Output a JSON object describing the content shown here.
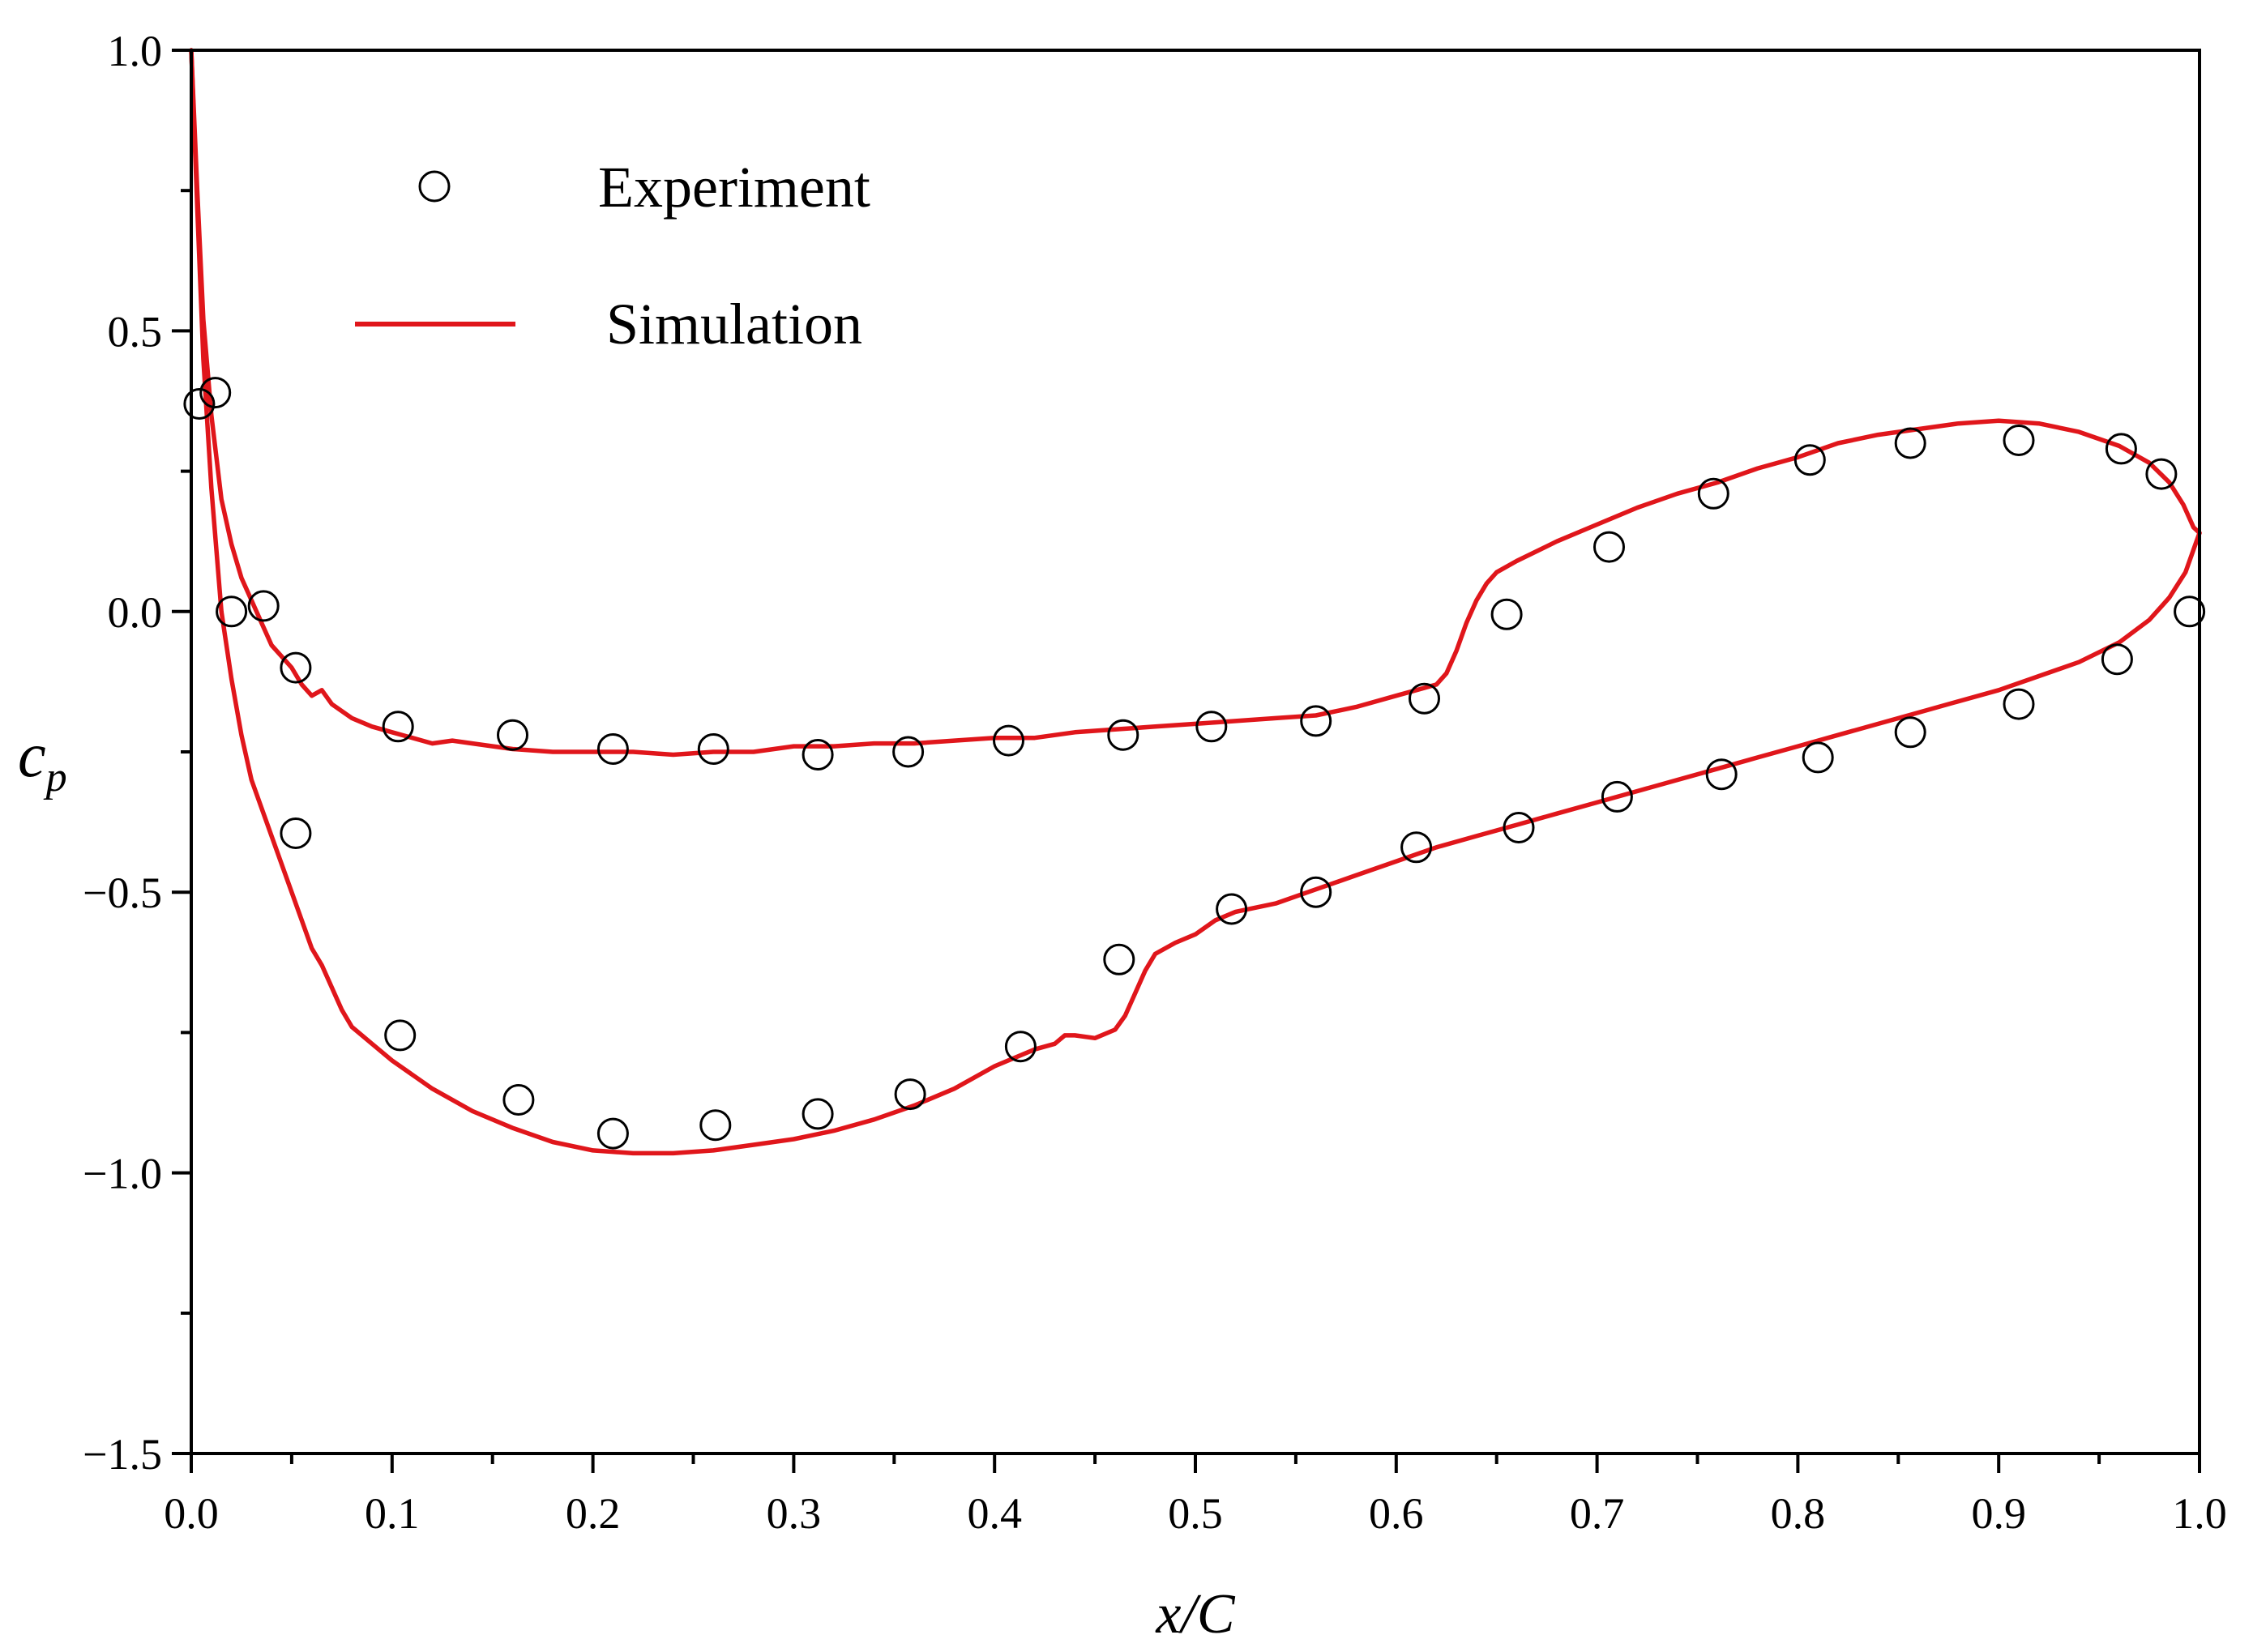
{
  "chart_data": {
    "type": "line",
    "title": "",
    "xlabel": "x/C",
    "ylabel": "c_p",
    "xlim": [
      0.0,
      1.0
    ],
    "ylim": [
      -1.5,
      1.0
    ],
    "xticks": [
      "0.0",
      "0.1",
      "0.2",
      "0.3",
      "0.4",
      "0.5",
      "0.6",
      "0.7",
      "0.8",
      "0.9",
      "1.0"
    ],
    "yticks": [
      "1.0",
      "0.5",
      "0.0",
      "−0.5",
      "−1.0",
      "−1.5"
    ],
    "legend_position": "top-left",
    "colors": {
      "simulation": "#e0161b",
      "experiment": "#000000",
      "axes": "#000000"
    },
    "series": [
      {
        "name": "Experiment",
        "kind": "scatter",
        "marker": "open-circle",
        "points": [
          [
            0.004,
            0.37
          ],
          [
            0.012,
            0.39
          ],
          [
            0.02,
            0.0
          ],
          [
            0.036,
            0.01
          ],
          [
            0.052,
            -0.1
          ],
          [
            0.052,
            -0.395
          ],
          [
            0.103,
            -0.205
          ],
          [
            0.16,
            -0.22
          ],
          [
            0.21,
            -0.245
          ],
          [
            0.26,
            -0.245
          ],
          [
            0.312,
            -0.255
          ],
          [
            0.357,
            -0.25
          ],
          [
            0.407,
            -0.23
          ],
          [
            0.464,
            -0.22
          ],
          [
            0.508,
            -0.205
          ],
          [
            0.56,
            -0.195
          ],
          [
            0.614,
            -0.155
          ],
          [
            0.655,
            -0.005
          ],
          [
            0.706,
            0.115
          ],
          [
            0.758,
            0.21
          ],
          [
            0.806,
            0.27
          ],
          [
            0.856,
            0.3
          ],
          [
            0.91,
            0.305
          ],
          [
            0.961,
            0.29
          ],
          [
            0.981,
            0.245
          ],
          [
            0.995,
            0.0
          ],
          [
            0.104,
            -0.755
          ],
          [
            0.163,
            -0.87
          ],
          [
            0.21,
            -0.93
          ],
          [
            0.261,
            -0.915
          ],
          [
            0.312,
            -0.895
          ],
          [
            0.358,
            -0.86
          ],
          [
            0.413,
            -0.775
          ],
          [
            0.462,
            -0.62
          ],
          [
            0.518,
            -0.53
          ],
          [
            0.56,
            -0.5
          ],
          [
            0.61,
            -0.42
          ],
          [
            0.661,
            -0.385
          ],
          [
            0.71,
            -0.33
          ],
          [
            0.762,
            -0.29
          ],
          [
            0.81,
            -0.26
          ],
          [
            0.856,
            -0.215
          ],
          [
            0.91,
            -0.165
          ],
          [
            0.959,
            -0.085
          ]
        ]
      },
      {
        "name": "Simulation",
        "kind": "line",
        "segments": [
          [
            [
              0.0,
              1.0
            ],
            [
              0.003,
              0.75
            ],
            [
              0.006,
              0.52
            ],
            [
              0.01,
              0.35
            ],
            [
              0.015,
              0.2
            ],
            [
              0.02,
              0.12
            ],
            [
              0.025,
              0.06
            ],
            [
              0.03,
              0.02
            ],
            [
              0.035,
              -0.02
            ],
            [
              0.04,
              -0.06
            ],
            [
              0.045,
              -0.08
            ],
            [
              0.05,
              -0.1
            ],
            [
              0.055,
              -0.13
            ],
            [
              0.06,
              -0.15
            ],
            [
              0.065,
              -0.14
            ],
            [
              0.07,
              -0.165
            ],
            [
              0.08,
              -0.19
            ],
            [
              0.09,
              -0.205
            ],
            [
              0.1,
              -0.215
            ],
            [
              0.12,
              -0.235
            ],
            [
              0.13,
              -0.23
            ],
            [
              0.14,
              -0.235
            ],
            [
              0.16,
              -0.245
            ],
            [
              0.18,
              -0.25
            ],
            [
              0.2,
              -0.25
            ],
            [
              0.22,
              -0.25
            ],
            [
              0.24,
              -0.255
            ],
            [
              0.26,
              -0.25
            ],
            [
              0.28,
              -0.25
            ],
            [
              0.3,
              -0.24
            ],
            [
              0.32,
              -0.24
            ],
            [
              0.34,
              -0.235
            ],
            [
              0.36,
              -0.235
            ],
            [
              0.38,
              -0.23
            ],
            [
              0.4,
              -0.225
            ],
            [
              0.42,
              -0.225
            ],
            [
              0.44,
              -0.215
            ],
            [
              0.46,
              -0.21
            ],
            [
              0.48,
              -0.205
            ],
            [
              0.5,
              -0.2
            ],
            [
              0.52,
              -0.195
            ],
            [
              0.54,
              -0.19
            ],
            [
              0.56,
              -0.185
            ],
            [
              0.58,
              -0.17
            ],
            [
              0.6,
              -0.15
            ],
            [
              0.61,
              -0.14
            ],
            [
              0.62,
              -0.13
            ],
            [
              0.625,
              -0.11
            ],
            [
              0.63,
              -0.07
            ],
            [
              0.635,
              -0.02
            ],
            [
              0.64,
              0.02
            ],
            [
              0.645,
              0.05
            ],
            [
              0.65,
              0.07
            ],
            [
              0.66,
              0.09
            ],
            [
              0.68,
              0.125
            ],
            [
              0.7,
              0.155
            ],
            [
              0.72,
              0.185
            ],
            [
              0.74,
              0.21
            ],
            [
              0.76,
              0.23
            ],
            [
              0.78,
              0.255
            ],
            [
              0.8,
              0.275
            ],
            [
              0.82,
              0.3
            ],
            [
              0.84,
              0.315
            ],
            [
              0.86,
              0.325
            ],
            [
              0.88,
              0.335
            ],
            [
              0.9,
              0.34
            ],
            [
              0.92,
              0.335
            ],
            [
              0.94,
              0.32
            ],
            [
              0.96,
              0.295
            ],
            [
              0.975,
              0.265
            ],
            [
              0.985,
              0.23
            ],
            [
              0.992,
              0.19
            ],
            [
              0.997,
              0.15
            ],
            [
              1.0,
              0.14
            ]
          ],
          [
            [
              0.0,
              1.0
            ],
            [
              0.003,
              0.72
            ],
            [
              0.006,
              0.45
            ],
            [
              0.01,
              0.22
            ],
            [
              0.015,
              0.0
            ],
            [
              0.02,
              -0.12
            ],
            [
              0.025,
              -0.22
            ],
            [
              0.03,
              -0.3
            ],
            [
              0.04,
              -0.4
            ],
            [
              0.05,
              -0.5
            ],
            [
              0.06,
              -0.6
            ],
            [
              0.065,
              -0.63
            ],
            [
              0.07,
              -0.67
            ],
            [
              0.075,
              -0.71
            ],
            [
              0.08,
              -0.74
            ],
            [
              0.09,
              -0.77
            ],
            [
              0.1,
              -0.8
            ],
            [
              0.12,
              -0.85
            ],
            [
              0.14,
              -0.89
            ],
            [
              0.16,
              -0.92
            ],
            [
              0.18,
              -0.945
            ],
            [
              0.2,
              -0.96
            ],
            [
              0.22,
              -0.965
            ],
            [
              0.24,
              -0.965
            ],
            [
              0.26,
              -0.96
            ],
            [
              0.28,
              -0.95
            ],
            [
              0.3,
              -0.94
            ],
            [
              0.32,
              -0.925
            ],
            [
              0.34,
              -0.905
            ],
            [
              0.36,
              -0.88
            ],
            [
              0.38,
              -0.85
            ],
            [
              0.4,
              -0.81
            ],
            [
              0.42,
              -0.78
            ],
            [
              0.43,
              -0.77
            ],
            [
              0.435,
              -0.755
            ],
            [
              0.44,
              -0.755
            ],
            [
              0.45,
              -0.76
            ],
            [
              0.46,
              -0.745
            ],
            [
              0.465,
              -0.72
            ],
            [
              0.47,
              -0.68
            ],
            [
              0.475,
              -0.64
            ],
            [
              0.48,
              -0.61
            ],
            [
              0.49,
              -0.59
            ],
            [
              0.5,
              -0.575
            ],
            [
              0.51,
              -0.55
            ],
            [
              0.52,
              -0.535
            ],
            [
              0.54,
              -0.52
            ],
            [
              0.56,
              -0.495
            ],
            [
              0.58,
              -0.47
            ],
            [
              0.6,
              -0.445
            ],
            [
              0.62,
              -0.42
            ],
            [
              0.64,
              -0.4
            ],
            [
              0.66,
              -0.38
            ],
            [
              0.68,
              -0.36
            ],
            [
              0.7,
              -0.34
            ],
            [
              0.72,
              -0.32
            ],
            [
              0.74,
              -0.3
            ],
            [
              0.76,
              -0.28
            ],
            [
              0.78,
              -0.26
            ],
            [
              0.8,
              -0.24
            ],
            [
              0.82,
              -0.22
            ],
            [
              0.84,
              -0.2
            ],
            [
              0.86,
              -0.18
            ],
            [
              0.88,
              -0.16
            ],
            [
              0.9,
              -0.14
            ],
            [
              0.92,
              -0.115
            ],
            [
              0.94,
              -0.09
            ],
            [
              0.96,
              -0.055
            ],
            [
              0.975,
              -0.015
            ],
            [
              0.985,
              0.025
            ],
            [
              0.993,
              0.07
            ],
            [
              0.998,
              0.12
            ],
            [
              1.0,
              0.14
            ]
          ]
        ]
      }
    ]
  }
}
